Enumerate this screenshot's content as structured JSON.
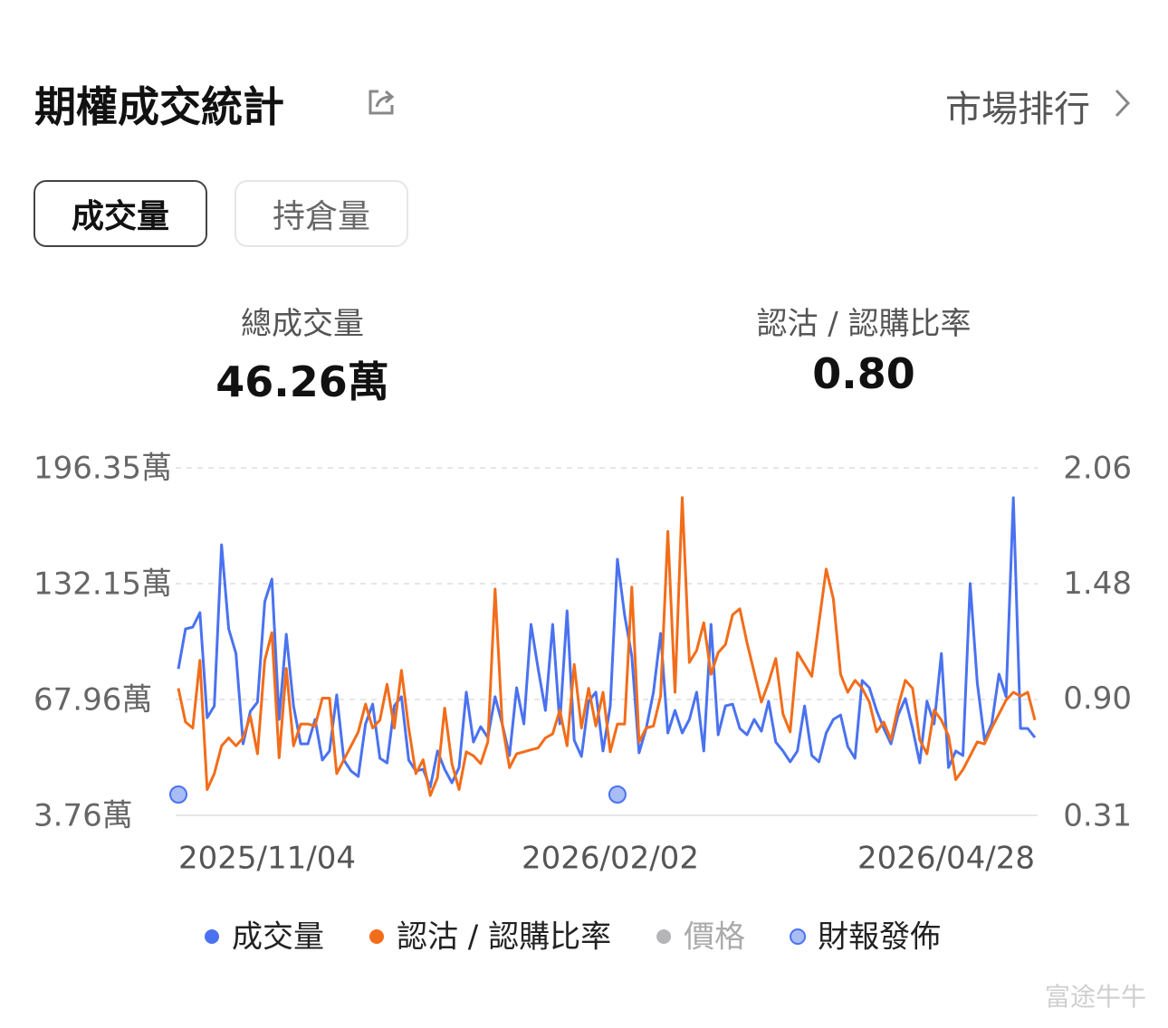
{
  "header": {
    "title": "期權成交統計",
    "link": "市場排行"
  },
  "tabs": [
    "成交量",
    "持倉量"
  ],
  "stats": [
    {
      "label": "總成交量",
      "value": "46.26萬"
    },
    {
      "label": "認沽 / 認購比率",
      "value": "0.80"
    }
  ],
  "watermark": "富途牛牛",
  "chart_data": {
    "type": "line",
    "categories": [
      "2025/11/04",
      null,
      null,
      null,
      null,
      null,
      null,
      null,
      null,
      null,
      null,
      null,
      null,
      null,
      null,
      null,
      null,
      null,
      null,
      null,
      null,
      null,
      null,
      null,
      null,
      null,
      null,
      null,
      null,
      null,
      null,
      null,
      null,
      null,
      null,
      null,
      null,
      null,
      null,
      null,
      null,
      null,
      null,
      null,
      null,
      null,
      null,
      null,
      null,
      null,
      null,
      null,
      null,
      null,
      null,
      null,
      null,
      null,
      null,
      null,
      "2026/02/02",
      null,
      null,
      null,
      null,
      null,
      null,
      null,
      null,
      null,
      null,
      null,
      null,
      null,
      null,
      null,
      null,
      null,
      null,
      null,
      null,
      null,
      null,
      null,
      null,
      null,
      null,
      null,
      null,
      null,
      null,
      null,
      null,
      null,
      null,
      null,
      null,
      null,
      null,
      null,
      null,
      null,
      null,
      null,
      null,
      null,
      null,
      null,
      null,
      null,
      null,
      null,
      null,
      null,
      null,
      null,
      null,
      null,
      null,
      "2026/04/28"
    ],
    "series": [
      {
        "name": "成交量",
        "color": "#4a72f0",
        "axis": "y",
        "values": [
          84.9,
          107.1,
          108.1,
          116.1,
          57.9,
          64.4,
          153.7,
          107.1,
          93.5,
          43.4,
          61.4,
          66.5,
          122.1,
          134.7,
          56.9,
          104.1,
          64.4,
          43.4,
          43.4,
          56.9,
          34.4,
          39.4,
          70.5,
          34.4,
          28.3,
          25.3,
          54.4,
          65.4,
          35.4,
          32.8,
          64.4,
          69.5,
          34.4,
          28.3,
          29.3,
          19.3,
          39.4,
          29.3,
          21.8,
          30.3,
          72.0,
          44.4,
          52.9,
          46.9,
          69.5,
          54.4,
          36.9,
          74.5,
          54.4,
          109.6,
          84.5,
          61.9,
          109.6,
          54.4,
          117.1,
          45.4,
          36.4,
          67.0,
          72.0,
          39.4,
          64.4,
          145.7,
          114.6,
          92.0,
          38.4,
          51.9,
          72.0,
          104.6,
          49.4,
          61.9,
          49.4,
          56.9,
          72.0,
          39.4,
          109.6,
          48.4,
          64.4,
          65.4,
          51.9,
          48.4,
          56.9,
          50.4,
          67.0,
          44.4,
          39.4,
          33.4,
          39.4,
          64.4,
          36.9,
          33.4,
          49.4,
          56.9,
          59.4,
          41.9,
          35.4,
          78.5,
          74.5,
          61.9,
          51.9,
          43.4,
          59.4,
          68.5,
          51.9,
          32.8,
          67.0,
          54.4,
          93.5,
          30.3,
          39.4,
          36.9,
          132.2,
          77.0,
          45.4,
          54.4,
          82.0,
          69.5,
          179.8,
          51.9,
          51.9,
          46.9
        ]
      },
      {
        "name": "認沽 / 認購比率",
        "color": "#f26d1a",
        "axis": "y2",
        "values": [
          0.95,
          0.78,
          0.75,
          1.09,
          0.44,
          0.52,
          0.66,
          0.7,
          0.66,
          0.7,
          0.81,
          0.62,
          1.09,
          1.23,
          0.6,
          1.05,
          0.66,
          0.77,
          0.77,
          0.76,
          0.9,
          0.9,
          0.52,
          0.59,
          0.66,
          0.73,
          0.87,
          0.75,
          0.79,
          0.97,
          0.75,
          1.04,
          0.75,
          0.52,
          0.59,
          0.41,
          0.5,
          0.85,
          0.57,
          0.44,
          0.63,
          0.61,
          0.57,
          0.68,
          1.45,
          0.77,
          0.55,
          0.62,
          0.63,
          0.64,
          0.65,
          0.7,
          0.72,
          0.84,
          0.66,
          1.07,
          0.75,
          0.95,
          0.76,
          0.93,
          0.63,
          0.77,
          0.77,
          1.46,
          0.68,
          0.75,
          0.76,
          0.91,
          1.74,
          0.93,
          1.91,
          1.08,
          1.14,
          1.28,
          1.02,
          1.13,
          1.17,
          1.32,
          1.35,
          1.18,
          1.03,
          0.88,
          0.98,
          1.1,
          0.82,
          0.73,
          1.13,
          1.07,
          1.01,
          1.28,
          1.55,
          1.4,
          1.02,
          0.93,
          0.99,
          0.95,
          0.88,
          0.73,
          0.78,
          0.69,
          0.86,
          0.99,
          0.95,
          0.69,
          0.62,
          0.84,
          0.79,
          0.71,
          0.49,
          0.54,
          0.61,
          0.68,
          0.67,
          0.75,
          0.82,
          0.89,
          0.93,
          0.91,
          0.93,
          0.79
        ]
      },
      {
        "name": "價格",
        "color": "#b5b5b8",
        "visible": false
      }
    ],
    "events": {
      "name": "財報發佈",
      "color": "#a9bdf5",
      "stroke": "#4a72f0",
      "positions": [
        0,
        61
      ]
    },
    "ylim": [
      3.76,
      196.35
    ],
    "yticks": [
      {
        "value": 3.76,
        "label": "3.76萬"
      },
      {
        "value": 67.96,
        "label": "67.96萬"
      },
      {
        "value": 132.15,
        "label": "132.15萬"
      },
      {
        "value": 196.35,
        "label": "196.35萬"
      }
    ],
    "y2lim": [
      0.31,
      2.06
    ],
    "y2ticks": [
      0.31,
      {
        "value": 0.9,
        "label": "0.90"
      },
      1.48,
      2.06
    ],
    "grid": true
  }
}
